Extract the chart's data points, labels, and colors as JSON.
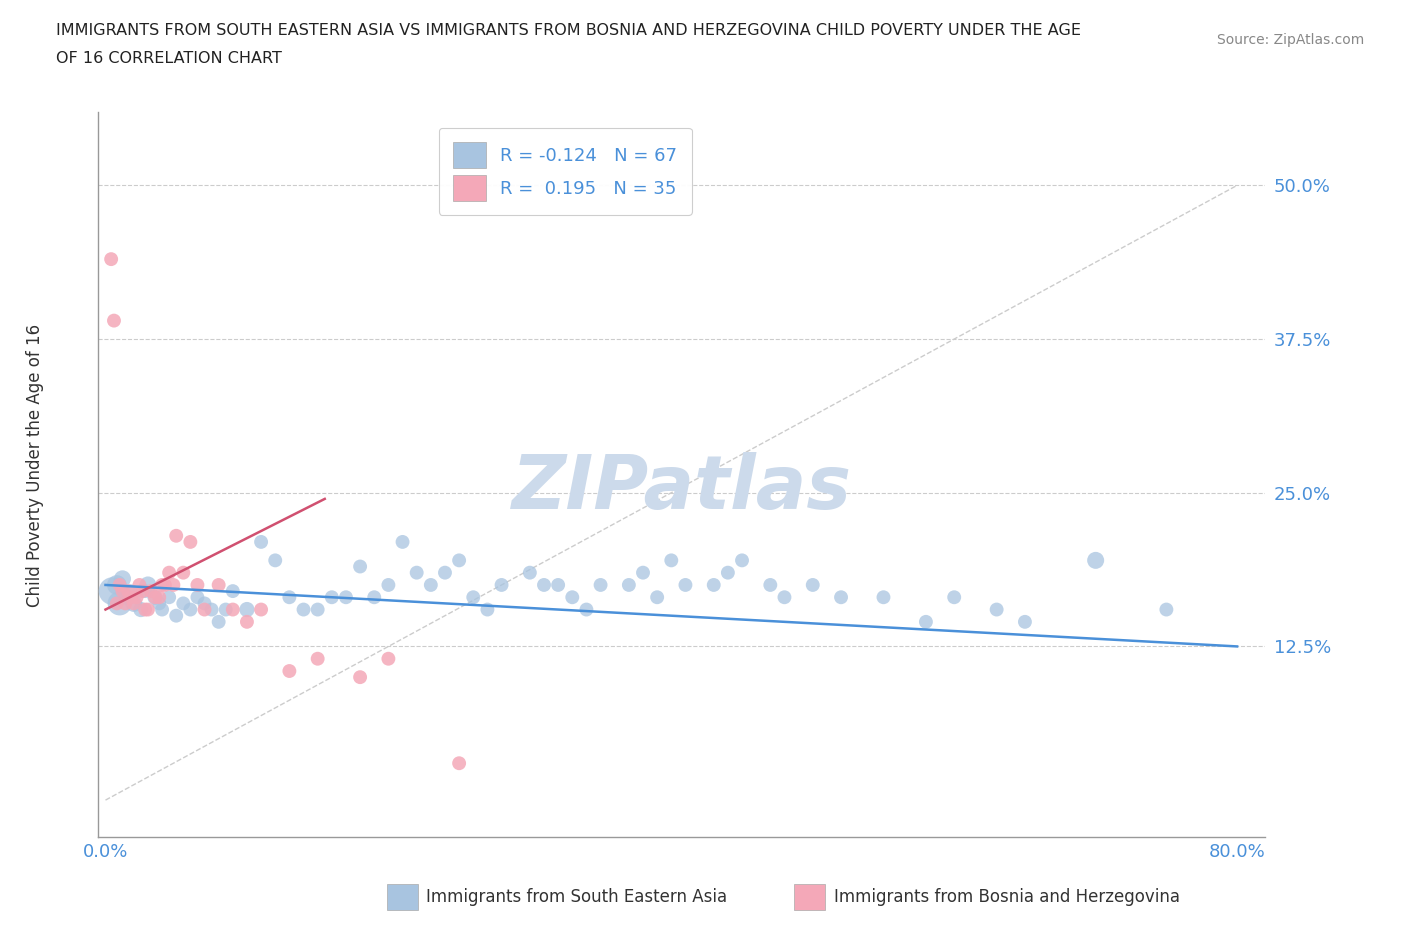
{
  "title_line1": "IMMIGRANTS FROM SOUTH EASTERN ASIA VS IMMIGRANTS FROM BOSNIA AND HERZEGOVINA CHILD POVERTY UNDER THE AGE",
  "title_line2": "OF 16 CORRELATION CHART",
  "source": "Source: ZipAtlas.com",
  "ylabel": "Child Poverty Under the Age of 16",
  "xlabel_blue": "Immigrants from South Eastern Asia",
  "xlabel_pink": "Immigrants from Bosnia and Herzegovina",
  "xlim": [
    -0.005,
    0.82
  ],
  "ylim": [
    -0.03,
    0.56
  ],
  "yticks": [
    0.0,
    0.125,
    0.25,
    0.375,
    0.5
  ],
  "ytick_labels": [
    "",
    "12.5%",
    "25.0%",
    "37.5%",
    "50.0%"
  ],
  "xticks": [
    0.0,
    0.2,
    0.4,
    0.6,
    0.8
  ],
  "xtick_labels": [
    "0.0%",
    "",
    "",
    "",
    "80.0%"
  ],
  "R_blue": -0.124,
  "N_blue": 67,
  "R_pink": 0.195,
  "N_pink": 35,
  "blue_color": "#a8c4e0",
  "pink_color": "#f4a8b8",
  "blue_line_color": "#4a90d9",
  "pink_line_color": "#d05070",
  "legend_blue_face": "#a8c4e0",
  "legend_pink_face": "#f4a8b8",
  "watermark": "ZIPatlas",
  "watermark_color": "#ccdaeb",
  "title_color": "#222222",
  "axis_label_color": "#333333",
  "tick_color": "#4a90d9",
  "blue_scatter_x": [
    0.005,
    0.008,
    0.01,
    0.012,
    0.015,
    0.018,
    0.02,
    0.025,
    0.028,
    0.03,
    0.035,
    0.038,
    0.04,
    0.045,
    0.05,
    0.055,
    0.06,
    0.065,
    0.07,
    0.075,
    0.08,
    0.085,
    0.09,
    0.1,
    0.11,
    0.12,
    0.13,
    0.14,
    0.15,
    0.16,
    0.17,
    0.18,
    0.19,
    0.2,
    0.21,
    0.22,
    0.23,
    0.24,
    0.25,
    0.26,
    0.27,
    0.28,
    0.3,
    0.31,
    0.32,
    0.33,
    0.34,
    0.35,
    0.37,
    0.38,
    0.39,
    0.4,
    0.41,
    0.43,
    0.44,
    0.45,
    0.47,
    0.48,
    0.5,
    0.52,
    0.55,
    0.58,
    0.6,
    0.63,
    0.65,
    0.7,
    0.75
  ],
  "blue_scatter_y": [
    0.17,
    0.175,
    0.16,
    0.18,
    0.165,
    0.17,
    0.16,
    0.155,
    0.17,
    0.175,
    0.165,
    0.16,
    0.155,
    0.165,
    0.15,
    0.16,
    0.155,
    0.165,
    0.16,
    0.155,
    0.145,
    0.155,
    0.17,
    0.155,
    0.21,
    0.195,
    0.165,
    0.155,
    0.155,
    0.165,
    0.165,
    0.19,
    0.165,
    0.175,
    0.21,
    0.185,
    0.175,
    0.185,
    0.195,
    0.165,
    0.155,
    0.175,
    0.185,
    0.175,
    0.175,
    0.165,
    0.155,
    0.175,
    0.175,
    0.185,
    0.165,
    0.195,
    0.175,
    0.175,
    0.185,
    0.195,
    0.175,
    0.165,
    0.175,
    0.165,
    0.165,
    0.145,
    0.165,
    0.155,
    0.145,
    0.195,
    0.155
  ],
  "blue_scatter_size": [
    400,
    200,
    300,
    150,
    120,
    100,
    150,
    120,
    100,
    150,
    120,
    100,
    100,
    100,
    100,
    100,
    100,
    100,
    100,
    100,
    100,
    100,
    100,
    120,
    100,
    100,
    100,
    100,
    100,
    100,
    100,
    100,
    100,
    100,
    100,
    100,
    100,
    100,
    100,
    100,
    100,
    100,
    100,
    100,
    100,
    100,
    100,
    100,
    100,
    100,
    100,
    100,
    100,
    100,
    100,
    100,
    100,
    100,
    100,
    100,
    100,
    100,
    100,
    100,
    100,
    150,
    100
  ],
  "pink_scatter_x": [
    0.004,
    0.006,
    0.008,
    0.01,
    0.012,
    0.014,
    0.016,
    0.018,
    0.02,
    0.022,
    0.024,
    0.026,
    0.028,
    0.03,
    0.032,
    0.035,
    0.038,
    0.04,
    0.042,
    0.045,
    0.048,
    0.05,
    0.055,
    0.06,
    0.065,
    0.07,
    0.08,
    0.09,
    0.1,
    0.11,
    0.13,
    0.15,
    0.18,
    0.2,
    0.25
  ],
  "pink_scatter_y": [
    0.44,
    0.39,
    0.16,
    0.175,
    0.17,
    0.16,
    0.17,
    0.165,
    0.16,
    0.165,
    0.175,
    0.17,
    0.155,
    0.155,
    0.17,
    0.165,
    0.165,
    0.175,
    0.175,
    0.185,
    0.175,
    0.215,
    0.185,
    0.21,
    0.175,
    0.155,
    0.175,
    0.155,
    0.145,
    0.155,
    0.105,
    0.115,
    0.1,
    0.115,
    0.03
  ],
  "pink_scatter_size": [
    100,
    100,
    100,
    100,
    100,
    100,
    100,
    100,
    100,
    100,
    100,
    100,
    100,
    100,
    100,
    100,
    100,
    100,
    100,
    100,
    100,
    100,
    100,
    100,
    100,
    100,
    100,
    100,
    100,
    100,
    100,
    100,
    100,
    100,
    100
  ],
  "blue_trend_x": [
    0.0,
    0.8
  ],
  "blue_trend_y_start": 0.175,
  "blue_trend_y_end": 0.125,
  "pink_trend_x": [
    0.0,
    0.155
  ],
  "pink_trend_y_start": 0.155,
  "pink_trend_y_end": 0.245
}
